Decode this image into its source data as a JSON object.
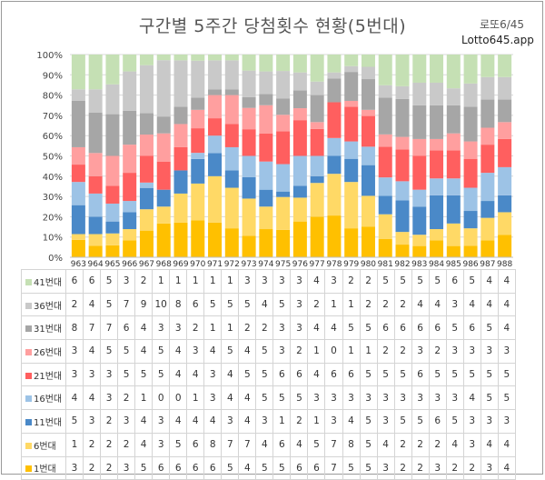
{
  "title": "구간별 5주간 당첨횟수 현황(5번대)",
  "corner": {
    "label": "로또6/45",
    "site": "Lotto645.app"
  },
  "chart_data": {
    "type": "bar",
    "stacked": "percent",
    "title": "구간별 5주간 당첨횟수 현황(5번대)",
    "categories": [
      "963",
      "964",
      "965",
      "966",
      "967",
      "968",
      "969",
      "970",
      "971",
      "972",
      "973",
      "974",
      "975",
      "976",
      "977",
      "978",
      "979",
      "980",
      "981",
      "982",
      "983",
      "984",
      "985",
      "986",
      "987",
      "988"
    ],
    "ylim": [
      0,
      100
    ],
    "yticks": [
      "0%",
      "10%",
      "20%",
      "30%",
      "40%",
      "50%",
      "60%",
      "70%",
      "80%",
      "90%",
      "100%"
    ],
    "legend": "table-below",
    "grid": true,
    "series": [
      {
        "name": "1번대",
        "color": "#ffc000",
        "values": [
          3,
          2,
          2,
          3,
          5,
          6,
          6,
          6,
          6,
          5,
          4,
          5,
          5,
          6,
          6,
          7,
          5,
          5,
          3,
          2,
          2,
          3,
          2,
          2,
          3,
          4
        ]
      },
      {
        "name": "6번대",
        "color": "#ffd966",
        "values": [
          1,
          2,
          2,
          2,
          4,
          3,
          5,
          6,
          8,
          7,
          7,
          4,
          6,
          4,
          5,
          7,
          8,
          5,
          4,
          2,
          2,
          2,
          4,
          3,
          4,
          4
        ]
      },
      {
        "name": "11번대",
        "color": "#4a89c8",
        "values": [
          5,
          3,
          2,
          3,
          4,
          3,
          4,
          4,
          4,
          3,
          4,
          3,
          1,
          2,
          1,
          3,
          4,
          5,
          3,
          5,
          5,
          6,
          5,
          3,
          3,
          3
        ]
      },
      {
        "name": "16번대",
        "color": "#9dc3e6",
        "values": [
          4,
          4,
          3,
          2,
          1,
          0,
          0,
          1,
          3,
          4,
          4,
          5,
          5,
          5,
          3,
          3,
          3,
          3,
          3,
          3,
          3,
          3,
          3,
          4,
          5,
          5
        ]
      },
      {
        "name": "21번대",
        "color": "#ff5f5f",
        "values": [
          3,
          3,
          3,
          5,
          5,
          5,
          4,
          4,
          3,
          4,
          5,
          5,
          6,
          6,
          4,
          6,
          6,
          5,
          5,
          5,
          6,
          5,
          5,
          5,
          5,
          5
        ]
      },
      {
        "name": "26번대",
        "color": "#ff9f9f",
        "values": [
          3,
          4,
          5,
          5,
          4,
          5,
          4,
          3,
          4,
          5,
          4,
          5,
          3,
          2,
          1,
          0,
          1,
          1,
          2,
          2,
          3,
          2,
          3,
          3,
          3,
          3
        ]
      },
      {
        "name": "31번대",
        "color": "#a6a6a6",
        "values": [
          8,
          7,
          7,
          6,
          4,
          3,
          3,
          2,
          1,
          1,
          2,
          2,
          3,
          3,
          4,
          4,
          5,
          5,
          6,
          6,
          6,
          6,
          5,
          6,
          5,
          4
        ]
      },
      {
        "name": "36번대",
        "color": "#c9c9c9",
        "values": [
          2,
          4,
          5,
          7,
          9,
          10,
          8,
          6,
          5,
          5,
          5,
          4,
          5,
          3,
          2,
          1,
          1,
          2,
          2,
          2,
          4,
          4,
          3,
          4,
          4,
          4
        ]
      },
      {
        "name": "41번대",
        "color": "#c5e0b4",
        "values": [
          6,
          6,
          5,
          3,
          2,
          1,
          1,
          1,
          1,
          1,
          3,
          3,
          3,
          3,
          4,
          3,
          2,
          2,
          5,
          5,
          5,
          5,
          6,
          5,
          4,
          4
        ]
      }
    ]
  }
}
